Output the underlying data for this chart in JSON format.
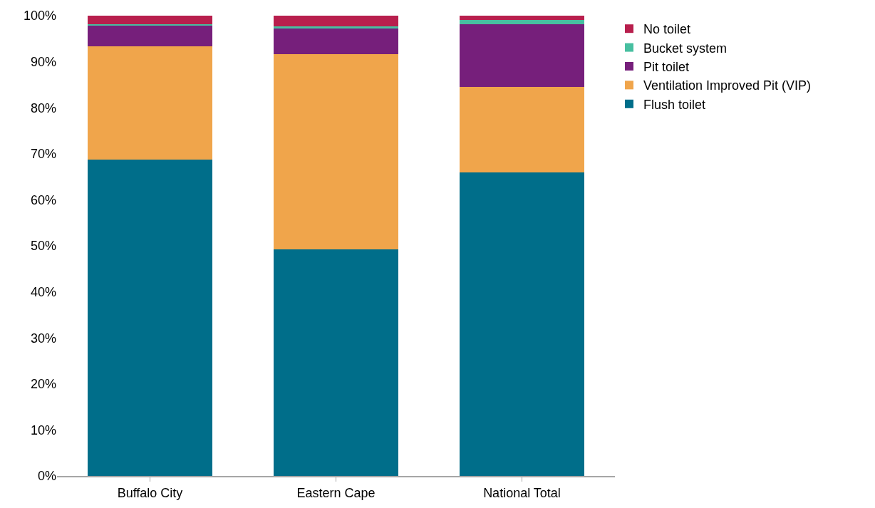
{
  "chart_data": {
    "type": "bar",
    "stacked": true,
    "categories": [
      "Buffalo City",
      "Eastern Cape",
      "National Total"
    ],
    "series": [
      {
        "name": "Flush toilet",
        "color": "#006e8a",
        "values": [
          68.8,
          49.2,
          66.0
        ]
      },
      {
        "name": "Ventilation Improved Pit (VIP)",
        "color": "#f0a54b",
        "values": [
          24.5,
          42.5,
          18.5
        ]
      },
      {
        "name": "Pit toilet",
        "color": "#761f7b",
        "values": [
          4.5,
          5.5,
          13.7
        ]
      },
      {
        "name": "Bucket system",
        "color": "#47bfa0",
        "values": [
          0.4,
          0.5,
          0.8
        ]
      },
      {
        "name": "No toilet",
        "color": "#b81f4d",
        "values": [
          1.8,
          2.3,
          1.0
        ]
      }
    ],
    "ylim": [
      0,
      100
    ],
    "yticks": [
      {
        "value": 0,
        "label": "0%"
      },
      {
        "value": 10,
        "label": "10%"
      },
      {
        "value": 20,
        "label": "20%"
      },
      {
        "value": 30,
        "label": "30%"
      },
      {
        "value": 40,
        "label": "40%"
      },
      {
        "value": 50,
        "label": "50%"
      },
      {
        "value": 60,
        "label": "60%"
      },
      {
        "value": 70,
        "label": "70%"
      },
      {
        "value": 80,
        "label": "80%"
      },
      {
        "value": 90,
        "label": "90%"
      },
      {
        "value": 100,
        "label": "100%"
      }
    ],
    "grid": false,
    "legend": "top right"
  }
}
